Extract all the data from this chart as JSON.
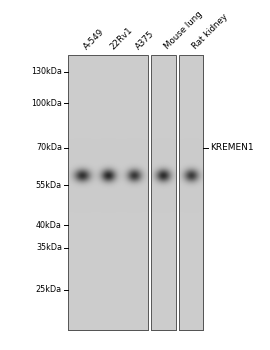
{
  "figure_width": 2.7,
  "figure_height": 3.5,
  "dpi": 100,
  "lane_labels": [
    "A-549",
    "22Rv1",
    "A375",
    "Mouse lung",
    "Rat kidney"
  ],
  "label_fontsize": 6.2,
  "marker_labels": [
    "130kDa",
    "100kDa",
    "70kDa",
    "55kDa",
    "40kDa",
    "35kDa",
    "25kDa"
  ],
  "marker_fontsize": 5.8,
  "protein_label": "KREMEN1",
  "protein_fontsize": 6.5,
  "panel_bg": "#cccccc",
  "band_base_color": "#222222",
  "white_bg": "#ffffff"
}
